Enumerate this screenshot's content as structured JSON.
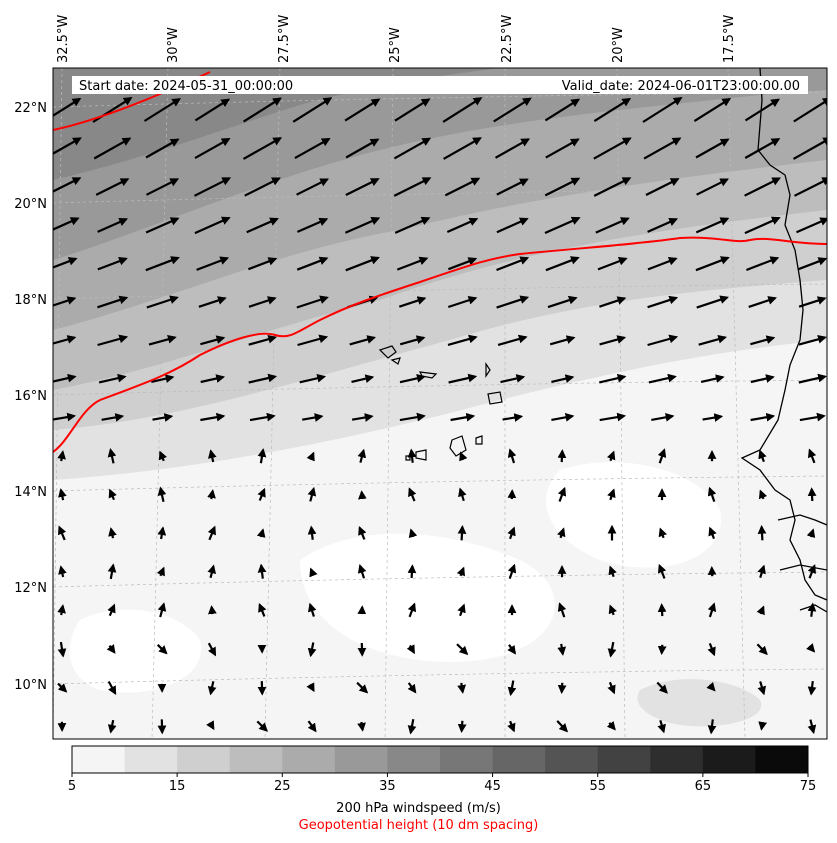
{
  "header": {
    "start_date": "Start date: 2024-05-31_00:00:00",
    "valid_date": "Valid_date: 2024-06-01T23:00:00.00"
  },
  "map": {
    "lon_labels": [
      "32.5°W",
      "30°W",
      "27.5°W",
      "25°W",
      "22.5°W",
      "20°W",
      "17.5°W"
    ],
    "lat_labels": [
      "22°N",
      "20°N",
      "18°N",
      "16°N",
      "14°N",
      "12°N",
      "10°N"
    ],
    "contour_color": "#ff0000",
    "coast_color": "#000000",
    "wind_arrow_color": "#000000"
  },
  "colorbar": {
    "ticks": [
      "5",
      "15",
      "25",
      "35",
      "45",
      "55",
      "65",
      "75"
    ],
    "colors": [
      "#f5f5f5",
      "#e2e2e2",
      "#cfcfcf",
      "#bdbdbd",
      "#ababab",
      "#999999",
      "#888888",
      "#777777",
      "#666666",
      "#545454",
      "#424242",
      "#2e2e2e",
      "#1b1b1b",
      "#0a0a0a"
    ],
    "label": "200 hPa windspeed (m/s)",
    "sublabel": "Geopotential height (10 dm spacing)",
    "sublabel_color": "#ff0000"
  }
}
